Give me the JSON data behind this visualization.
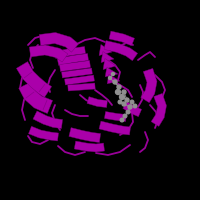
{
  "background_color": "#000000",
  "protein_color": "#AA00AA",
  "protein_color_light": "#CC55CC",
  "protein_color_dark": "#770077",
  "ligand_color": "#909090",
  "figsize": [
    2.0,
    2.0
  ],
  "dpi": 100
}
